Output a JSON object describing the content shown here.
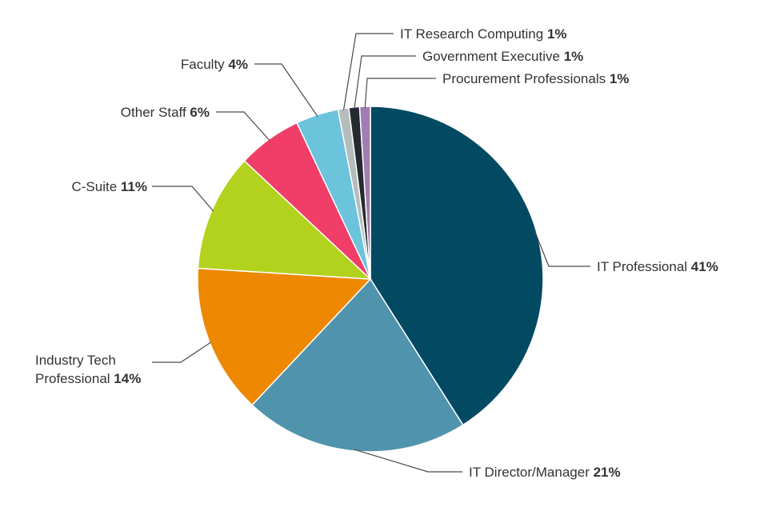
{
  "chart_data": {
    "type": "pie",
    "start_angle_deg": 0,
    "direction": "clockwise",
    "slices": [
      {
        "name": "IT Professional",
        "label_lines": [
          "IT Professional"
        ],
        "pct_text": "41%",
        "value": 41,
        "color": "#024a62"
      },
      {
        "name": "IT Director/Manager",
        "label_lines": [
          "IT Director/Manager"
        ],
        "pct_text": "21%",
        "value": 21,
        "color": "#5093ac"
      },
      {
        "name": "Industry Tech Professional",
        "label_lines": [
          "Industry Tech",
          "Professional"
        ],
        "pct_text": "14%",
        "value": 14,
        "color": "#ee8801"
      },
      {
        "name": "C-Suite",
        "label_lines": [
          "C-Suite"
        ],
        "pct_text": "11%",
        "value": 11,
        "color": "#b2d21e"
      },
      {
        "name": "Other Staff",
        "label_lines": [
          "Other Staff"
        ],
        "pct_text": "6%",
        "value": 6,
        "color": "#f03e68"
      },
      {
        "name": "Faculty",
        "label_lines": [
          "Faculty"
        ],
        "pct_text": "4%",
        "value": 4,
        "color": "#6cc3dc"
      },
      {
        "name": "IT Research Computing",
        "label_lines": [
          "IT Research  Computing"
        ],
        "pct_text": "1%",
        "value": 1,
        "color": "#b5bcbc"
      },
      {
        "name": "Government Executive",
        "label_lines": [
          "Government Executive"
        ],
        "pct_text": "1%",
        "value": 1,
        "color": "#242a30"
      },
      {
        "name": "Procurement Professionals",
        "label_lines": [
          "Procurement Professionals"
        ],
        "pct_text": "1%",
        "value": 1,
        "color": "#a27cb5"
      }
    ]
  }
}
